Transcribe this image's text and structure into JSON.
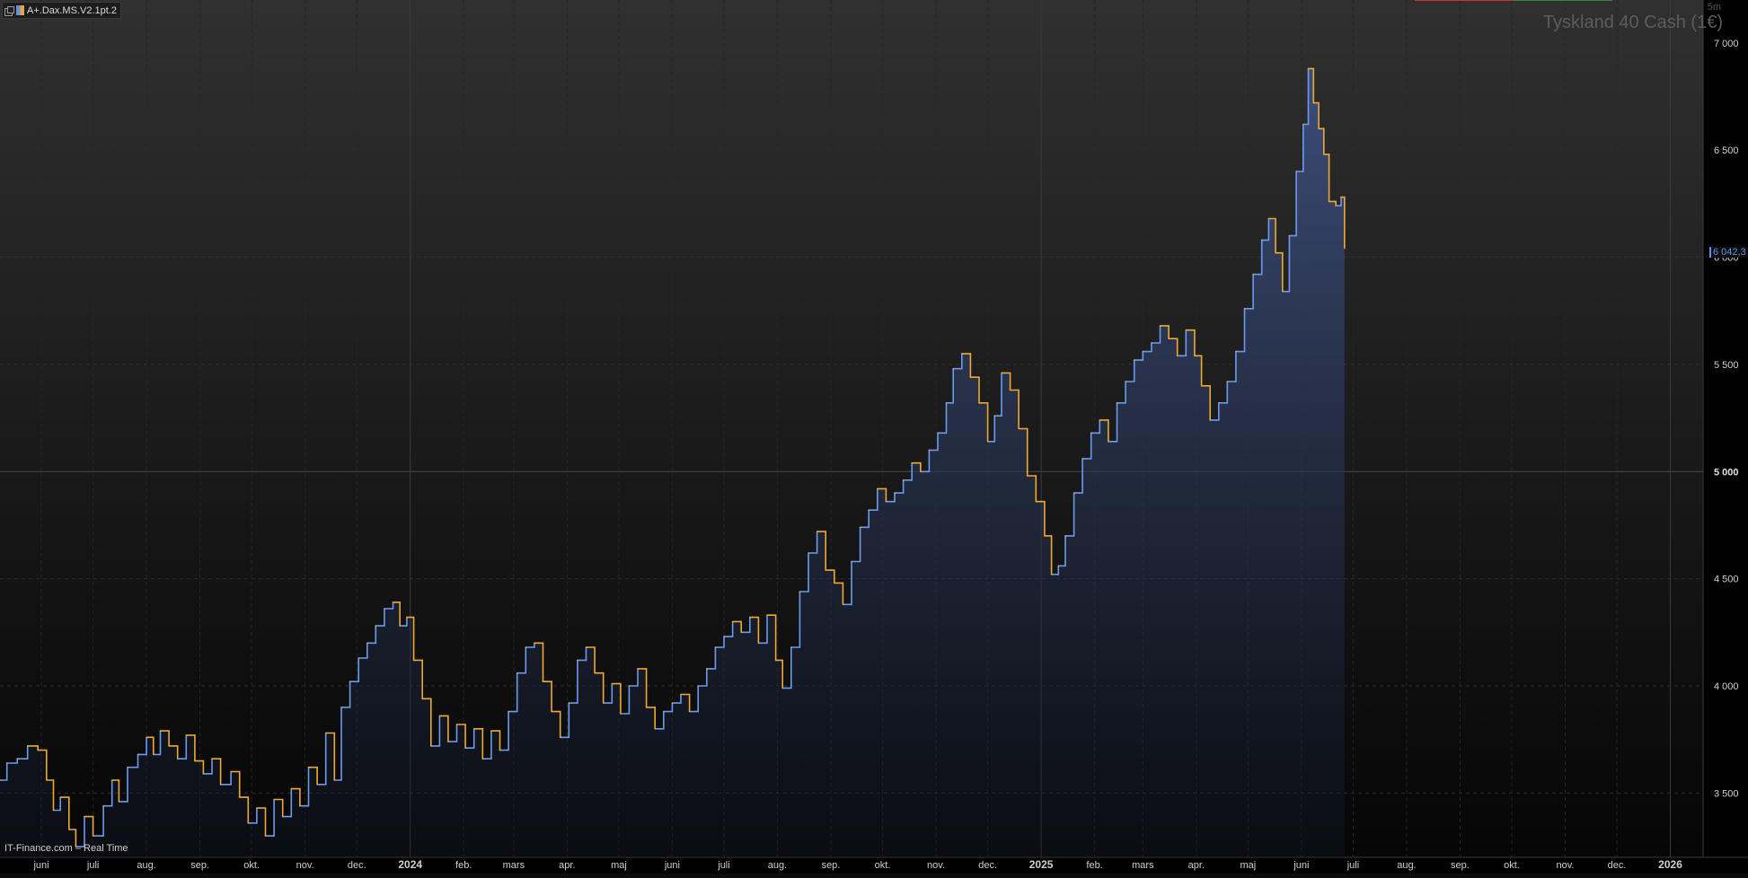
{
  "indicator_tab": {
    "label": "A+.Dax.MS.V2.1pt.2"
  },
  "instrument_title": "Tyskland 40 Cash (1€)",
  "interval": "5m",
  "footer": "IT-Finance.com – Real Time",
  "last_price_label": "6 042,3",
  "colors": {
    "line_up": "#6b9bf0",
    "line_down": "#f0a830",
    "area": "#3f5388",
    "price_tag": "#5f8fe8"
  },
  "chart_data": {
    "type": "line",
    "title": "Tyskland 40 Cash (1€)",
    "xlabel": "",
    "ylabel": "",
    "ylim": [
      3200,
      7200
    ],
    "y_ticks": [
      {
        "value": 3500,
        "label": "3 500"
      },
      {
        "value": 4000,
        "label": "4 000"
      },
      {
        "value": 4500,
        "label": "4 500"
      },
      {
        "value": 5000,
        "label": "5 000"
      },
      {
        "value": 5500,
        "label": "5 500"
      },
      {
        "value": 6000,
        "label": "6 000"
      },
      {
        "value": 6500,
        "label": "6 500"
      },
      {
        "value": 7000,
        "label": "7 000"
      }
    ],
    "x_range": [
      "2023-05-08",
      "2026-01-20"
    ],
    "x_ticks": [
      {
        "date": "2023-06-01",
        "label": "juni",
        "bold": false
      },
      {
        "date": "2023-07-01",
        "label": "juli",
        "bold": false
      },
      {
        "date": "2023-08-01",
        "label": "aug.",
        "bold": false
      },
      {
        "date": "2023-09-01",
        "label": "sep.",
        "bold": false
      },
      {
        "date": "2023-10-01",
        "label": "okt.",
        "bold": false
      },
      {
        "date": "2023-11-01",
        "label": "nov.",
        "bold": false
      },
      {
        "date": "2023-12-01",
        "label": "dec.",
        "bold": false
      },
      {
        "date": "2024-01-01",
        "label": "2024",
        "bold": true
      },
      {
        "date": "2024-02-01",
        "label": "feb.",
        "bold": false
      },
      {
        "date": "2024-03-01",
        "label": "mars",
        "bold": false
      },
      {
        "date": "2024-04-01",
        "label": "apr.",
        "bold": false
      },
      {
        "date": "2024-05-01",
        "label": "maj",
        "bold": false
      },
      {
        "date": "2024-06-01",
        "label": "juni",
        "bold": false
      },
      {
        "date": "2024-07-01",
        "label": "juli",
        "bold": false
      },
      {
        "date": "2024-08-01",
        "label": "aug.",
        "bold": false
      },
      {
        "date": "2024-09-01",
        "label": "sep.",
        "bold": false
      },
      {
        "date": "2024-10-01",
        "label": "okt.",
        "bold": false
      },
      {
        "date": "2024-11-01",
        "label": "nov.",
        "bold": false
      },
      {
        "date": "2024-12-01",
        "label": "dec.",
        "bold": false
      },
      {
        "date": "2025-01-01",
        "label": "2025",
        "bold": true
      },
      {
        "date": "2025-02-01",
        "label": "feb.",
        "bold": false
      },
      {
        "date": "2025-03-01",
        "label": "mars",
        "bold": false
      },
      {
        "date": "2025-04-01",
        "label": "apr.",
        "bold": false
      },
      {
        "date": "2025-05-01",
        "label": "maj",
        "bold": false
      },
      {
        "date": "2025-06-01",
        "label": "juni",
        "bold": false
      },
      {
        "date": "2025-07-01",
        "label": "juli",
        "bold": false
      },
      {
        "date": "2025-08-01",
        "label": "aug.",
        "bold": false
      },
      {
        "date": "2025-09-01",
        "label": "sep.",
        "bold": false
      },
      {
        "date": "2025-10-01",
        "label": "okt.",
        "bold": false
      },
      {
        "date": "2025-11-01",
        "label": "nov.",
        "bold": false
      },
      {
        "date": "2025-12-01",
        "label": "dec.",
        "bold": false
      },
      {
        "date": "2026-01-01",
        "label": "2026",
        "bold": true
      }
    ],
    "reference_line": 5000,
    "series": [
      {
        "points": [
          [
            "2023-05-08",
            3560
          ],
          [
            "2023-05-12",
            3640
          ],
          [
            "2023-05-18",
            3660
          ],
          [
            "2023-05-24",
            3720
          ],
          [
            "2023-05-30",
            3700
          ],
          [
            "2023-06-04",
            3560
          ],
          [
            "2023-06-08",
            3420
          ],
          [
            "2023-06-12",
            3480
          ],
          [
            "2023-06-17",
            3330
          ],
          [
            "2023-06-21",
            3250
          ],
          [
            "2023-06-26",
            3390
          ],
          [
            "2023-07-01",
            3300
          ],
          [
            "2023-07-07",
            3440
          ],
          [
            "2023-07-12",
            3560
          ],
          [
            "2023-07-16",
            3460
          ],
          [
            "2023-07-21",
            3620
          ],
          [
            "2023-07-27",
            3680
          ],
          [
            "2023-08-01",
            3760
          ],
          [
            "2023-08-05",
            3680
          ],
          [
            "2023-08-09",
            3790
          ],
          [
            "2023-08-14",
            3720
          ],
          [
            "2023-08-19",
            3660
          ],
          [
            "2023-08-24",
            3770
          ],
          [
            "2023-08-29",
            3650
          ],
          [
            "2023-09-03",
            3590
          ],
          [
            "2023-09-08",
            3660
          ],
          [
            "2023-09-13",
            3540
          ],
          [
            "2023-09-19",
            3600
          ],
          [
            "2023-09-24",
            3480
          ],
          [
            "2023-09-29",
            3360
          ],
          [
            "2023-10-04",
            3430
          ],
          [
            "2023-10-09",
            3300
          ],
          [
            "2023-10-14",
            3470
          ],
          [
            "2023-10-19",
            3390
          ],
          [
            "2023-10-24",
            3520
          ],
          [
            "2023-10-29",
            3440
          ],
          [
            "2023-11-03",
            3620
          ],
          [
            "2023-11-08",
            3540
          ],
          [
            "2023-11-13",
            3780
          ],
          [
            "2023-11-18",
            3560
          ],
          [
            "2023-11-22",
            3900
          ],
          [
            "2023-11-27",
            4020
          ],
          [
            "2023-12-02",
            4130
          ],
          [
            "2023-12-07",
            4200
          ],
          [
            "2023-12-12",
            4280
          ],
          [
            "2023-12-17",
            4360
          ],
          [
            "2023-12-22",
            4390
          ],
          [
            "2023-12-26",
            4280
          ],
          [
            "2023-12-30",
            4320
          ],
          [
            "2024-01-03",
            4120
          ],
          [
            "2024-01-08",
            3940
          ],
          [
            "2024-01-13",
            3720
          ],
          [
            "2024-01-18",
            3860
          ],
          [
            "2024-01-23",
            3740
          ],
          [
            "2024-01-28",
            3820
          ],
          [
            "2024-02-02",
            3710
          ],
          [
            "2024-02-07",
            3800
          ],
          [
            "2024-02-12",
            3660
          ],
          [
            "2024-02-17",
            3790
          ],
          [
            "2024-02-22",
            3700
          ],
          [
            "2024-02-27",
            3880
          ],
          [
            "2024-03-03",
            4060
          ],
          [
            "2024-03-08",
            4180
          ],
          [
            "2024-03-13",
            4200
          ],
          [
            "2024-03-18",
            4020
          ],
          [
            "2024-03-23",
            3880
          ],
          [
            "2024-03-28",
            3760
          ],
          [
            "2024-04-02",
            3920
          ],
          [
            "2024-04-07",
            4120
          ],
          [
            "2024-04-12",
            4180
          ],
          [
            "2024-04-17",
            4060
          ],
          [
            "2024-04-22",
            3920
          ],
          [
            "2024-04-27",
            4010
          ],
          [
            "2024-05-02",
            3870
          ],
          [
            "2024-05-07",
            4000
          ],
          [
            "2024-05-12",
            4080
          ],
          [
            "2024-05-17",
            3900
          ],
          [
            "2024-05-22",
            3800
          ],
          [
            "2024-05-27",
            3880
          ],
          [
            "2024-06-01",
            3920
          ],
          [
            "2024-06-06",
            3960
          ],
          [
            "2024-06-11",
            3880
          ],
          [
            "2024-06-16",
            4000
          ],
          [
            "2024-06-21",
            4080
          ],
          [
            "2024-06-26",
            4180
          ],
          [
            "2024-07-01",
            4230
          ],
          [
            "2024-07-06",
            4300
          ],
          [
            "2024-07-11",
            4250
          ],
          [
            "2024-07-16",
            4320
          ],
          [
            "2024-07-21",
            4200
          ],
          [
            "2024-07-26",
            4330
          ],
          [
            "2024-07-31",
            4120
          ],
          [
            "2024-08-04",
            3990
          ],
          [
            "2024-08-09",
            4180
          ],
          [
            "2024-08-14",
            4440
          ],
          [
            "2024-08-19",
            4620
          ],
          [
            "2024-08-24",
            4720
          ],
          [
            "2024-08-29",
            4540
          ],
          [
            "2024-09-03",
            4480
          ],
          [
            "2024-09-08",
            4380
          ],
          [
            "2024-09-13",
            4580
          ],
          [
            "2024-09-18",
            4740
          ],
          [
            "2024-09-23",
            4820
          ],
          [
            "2024-09-28",
            4920
          ],
          [
            "2024-10-03",
            4860
          ],
          [
            "2024-10-08",
            4900
          ],
          [
            "2024-10-13",
            4960
          ],
          [
            "2024-10-18",
            5040
          ],
          [
            "2024-10-23",
            5000
          ],
          [
            "2024-10-28",
            5100
          ],
          [
            "2024-11-02",
            5180
          ],
          [
            "2024-11-07",
            5320
          ],
          [
            "2024-11-11",
            5480
          ],
          [
            "2024-11-16",
            5550
          ],
          [
            "2024-11-21",
            5440
          ],
          [
            "2024-11-26",
            5320
          ],
          [
            "2024-12-01",
            5140
          ],
          [
            "2024-12-05",
            5260
          ],
          [
            "2024-12-09",
            5460
          ],
          [
            "2024-12-14",
            5380
          ],
          [
            "2024-12-19",
            5200
          ],
          [
            "2024-12-24",
            4980
          ],
          [
            "2024-12-29",
            4860
          ],
          [
            "2025-01-03",
            4700
          ],
          [
            "2025-01-07",
            4520
          ],
          [
            "2025-01-11",
            4560
          ],
          [
            "2025-01-15",
            4700
          ],
          [
            "2025-01-20",
            4900
          ],
          [
            "2025-01-25",
            5060
          ],
          [
            "2025-01-30",
            5180
          ],
          [
            "2025-02-04",
            5240
          ],
          [
            "2025-02-09",
            5140
          ],
          [
            "2025-02-14",
            5320
          ],
          [
            "2025-02-19",
            5420
          ],
          [
            "2025-02-24",
            5520
          ],
          [
            "2025-03-01",
            5560
          ],
          [
            "2025-03-06",
            5600
          ],
          [
            "2025-03-11",
            5680
          ],
          [
            "2025-03-16",
            5620
          ],
          [
            "2025-03-21",
            5540
          ],
          [
            "2025-03-26",
            5660
          ],
          [
            "2025-03-31",
            5540
          ],
          [
            "2025-04-04",
            5400
          ],
          [
            "2025-04-09",
            5240
          ],
          [
            "2025-04-14",
            5320
          ],
          [
            "2025-04-19",
            5420
          ],
          [
            "2025-04-24",
            5560
          ],
          [
            "2025-04-29",
            5760
          ],
          [
            "2025-05-04",
            5920
          ],
          [
            "2025-05-09",
            6080
          ],
          [
            "2025-05-13",
            6180
          ],
          [
            "2025-05-17",
            6020
          ],
          [
            "2025-05-21",
            5840
          ],
          [
            "2025-05-25",
            6100
          ],
          [
            "2025-05-29",
            6400
          ],
          [
            "2025-06-02",
            6620
          ],
          [
            "2025-06-05",
            6880
          ],
          [
            "2025-06-08",
            6720
          ],
          [
            "2025-06-11",
            6600
          ],
          [
            "2025-06-14",
            6480
          ],
          [
            "2025-06-17",
            6260
          ],
          [
            "2025-06-21",
            6240
          ],
          [
            "2025-06-24",
            6280
          ],
          [
            "2025-06-26",
            6042
          ]
        ]
      }
    ]
  }
}
